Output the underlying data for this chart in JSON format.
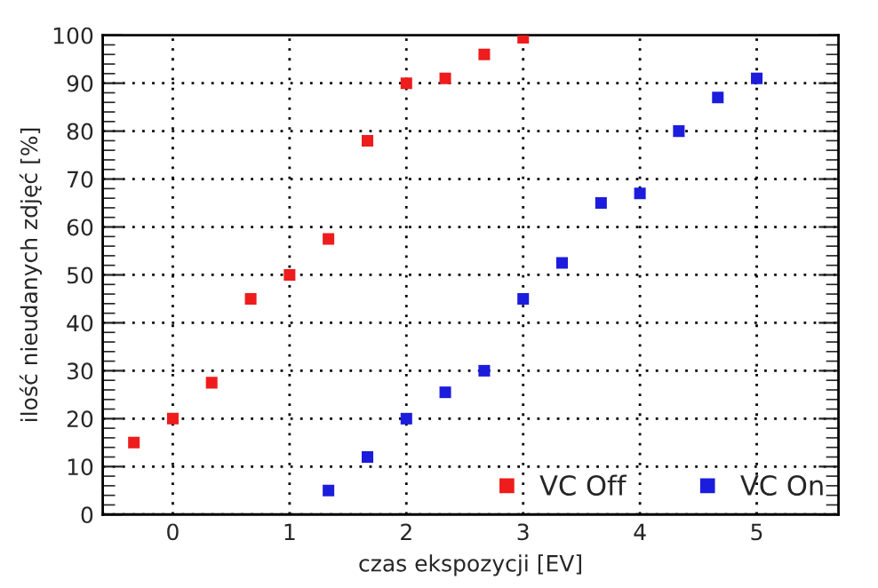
{
  "chart_data": {
    "type": "scatter",
    "xlabel": "czas ekspozycji [EV]",
    "ylabel": "ilość nieudanych zdjęć [%]",
    "xlim": [
      -0.6,
      5.7
    ],
    "xticks": [
      0,
      1,
      2,
      3,
      4,
      5
    ],
    "ylim": [
      0,
      100
    ],
    "yticks": [
      0,
      10,
      20,
      30,
      40,
      50,
      60,
      70,
      80,
      90,
      100
    ],
    "grid": true,
    "legend": "bottom right",
    "marker": "square",
    "series": [
      {
        "name": "VC Off",
        "color": "#ee1c1c",
        "x": [
          -0.333,
          0,
          0.333,
          0.667,
          1,
          1.333,
          1.667,
          2,
          2.333,
          2.667,
          3
        ],
        "values": [
          15,
          20,
          27.5,
          45,
          50,
          57.5,
          78,
          90,
          91,
          96,
          99.5
        ]
      },
      {
        "name": "VC On",
        "color": "#1c1cdd",
        "x": [
          1.333,
          1.667,
          2,
          2.333,
          2.667,
          3,
          3.333,
          3.667,
          4,
          4.333,
          4.667,
          5
        ],
        "values": [
          5,
          12,
          20,
          25.5,
          30,
          45,
          52.5,
          65,
          67,
          80,
          87,
          91
        ]
      }
    ]
  }
}
